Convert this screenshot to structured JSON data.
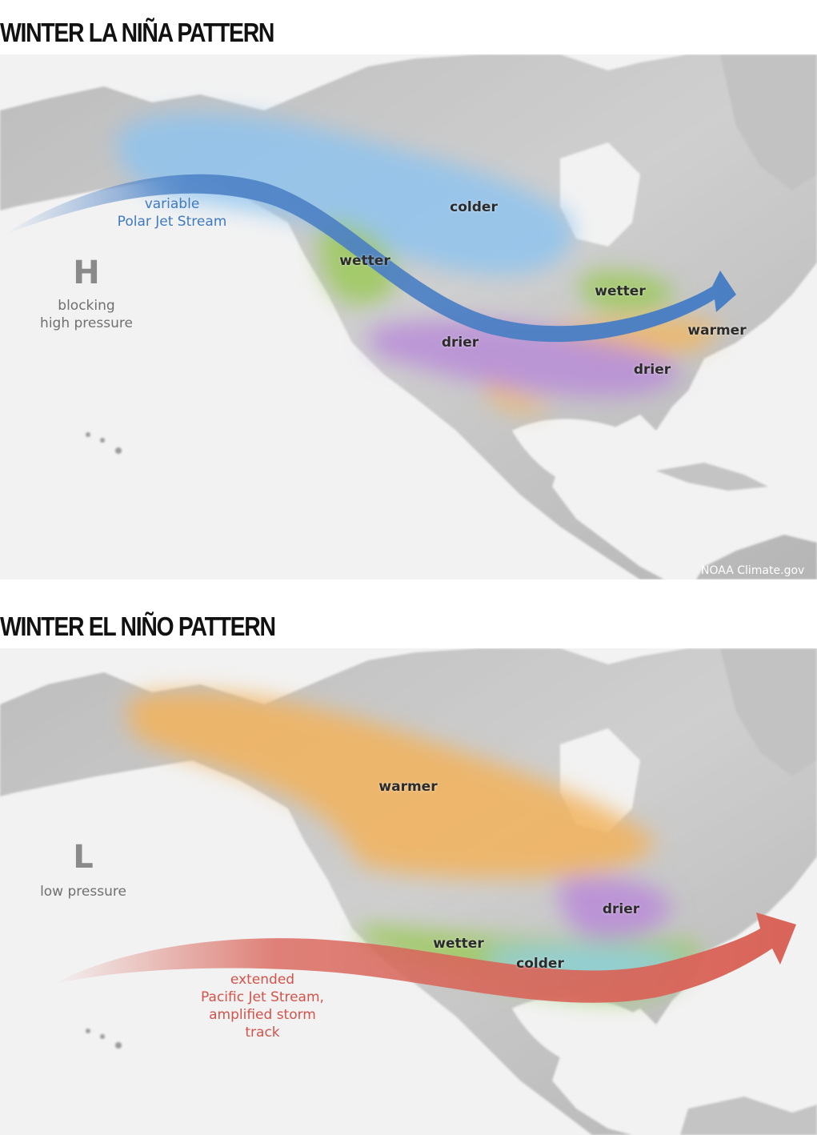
{
  "panels": [
    {
      "id": "la-nina",
      "title": "WINTER LA NIÑA PATTERN",
      "pressure": {
        "letter": "H",
        "line1": "blocking",
        "line2": "high pressure"
      },
      "jet_stream": {
        "line1": "variable",
        "line2": "Polar Jet Stream",
        "color": "#4a7fc4"
      },
      "regions": [
        {
          "id": "colder",
          "label": "colder",
          "color": "#8cc3f0"
        },
        {
          "id": "wetter-nw",
          "label": "wetter",
          "color": "#9cc95a"
        },
        {
          "id": "wetter-ohio",
          "label": "wetter",
          "color": "#9cc95a"
        },
        {
          "id": "warmer-se",
          "label": "warmer",
          "color": "#f2b65e"
        },
        {
          "id": "drier-sw",
          "label": "drier",
          "color": "#b889d8"
        },
        {
          "id": "drier-se",
          "label": "drier",
          "color": "#b889d8"
        }
      ],
      "credit": "NOAA Climate.gov"
    },
    {
      "id": "el-nino",
      "title": "WINTER EL NIÑO PATTERN",
      "pressure": {
        "letter": "L",
        "line1": "low pressure"
      },
      "jet_stream": {
        "line1": "extended",
        "line2": "Pacific Jet Stream,",
        "line3": "amplified storm",
        "line4": "track",
        "color": "#d96459"
      },
      "regions": [
        {
          "id": "warmer",
          "label": "warmer",
          "color": "#f2b35c"
        },
        {
          "id": "drier-ohio",
          "label": "drier",
          "color": "#b889d8"
        },
        {
          "id": "wetter-south",
          "label": "wetter",
          "color": "#9cc95a"
        },
        {
          "id": "colder-south",
          "label": "colder",
          "color": "#8fd0e8"
        }
      ]
    }
  ]
}
